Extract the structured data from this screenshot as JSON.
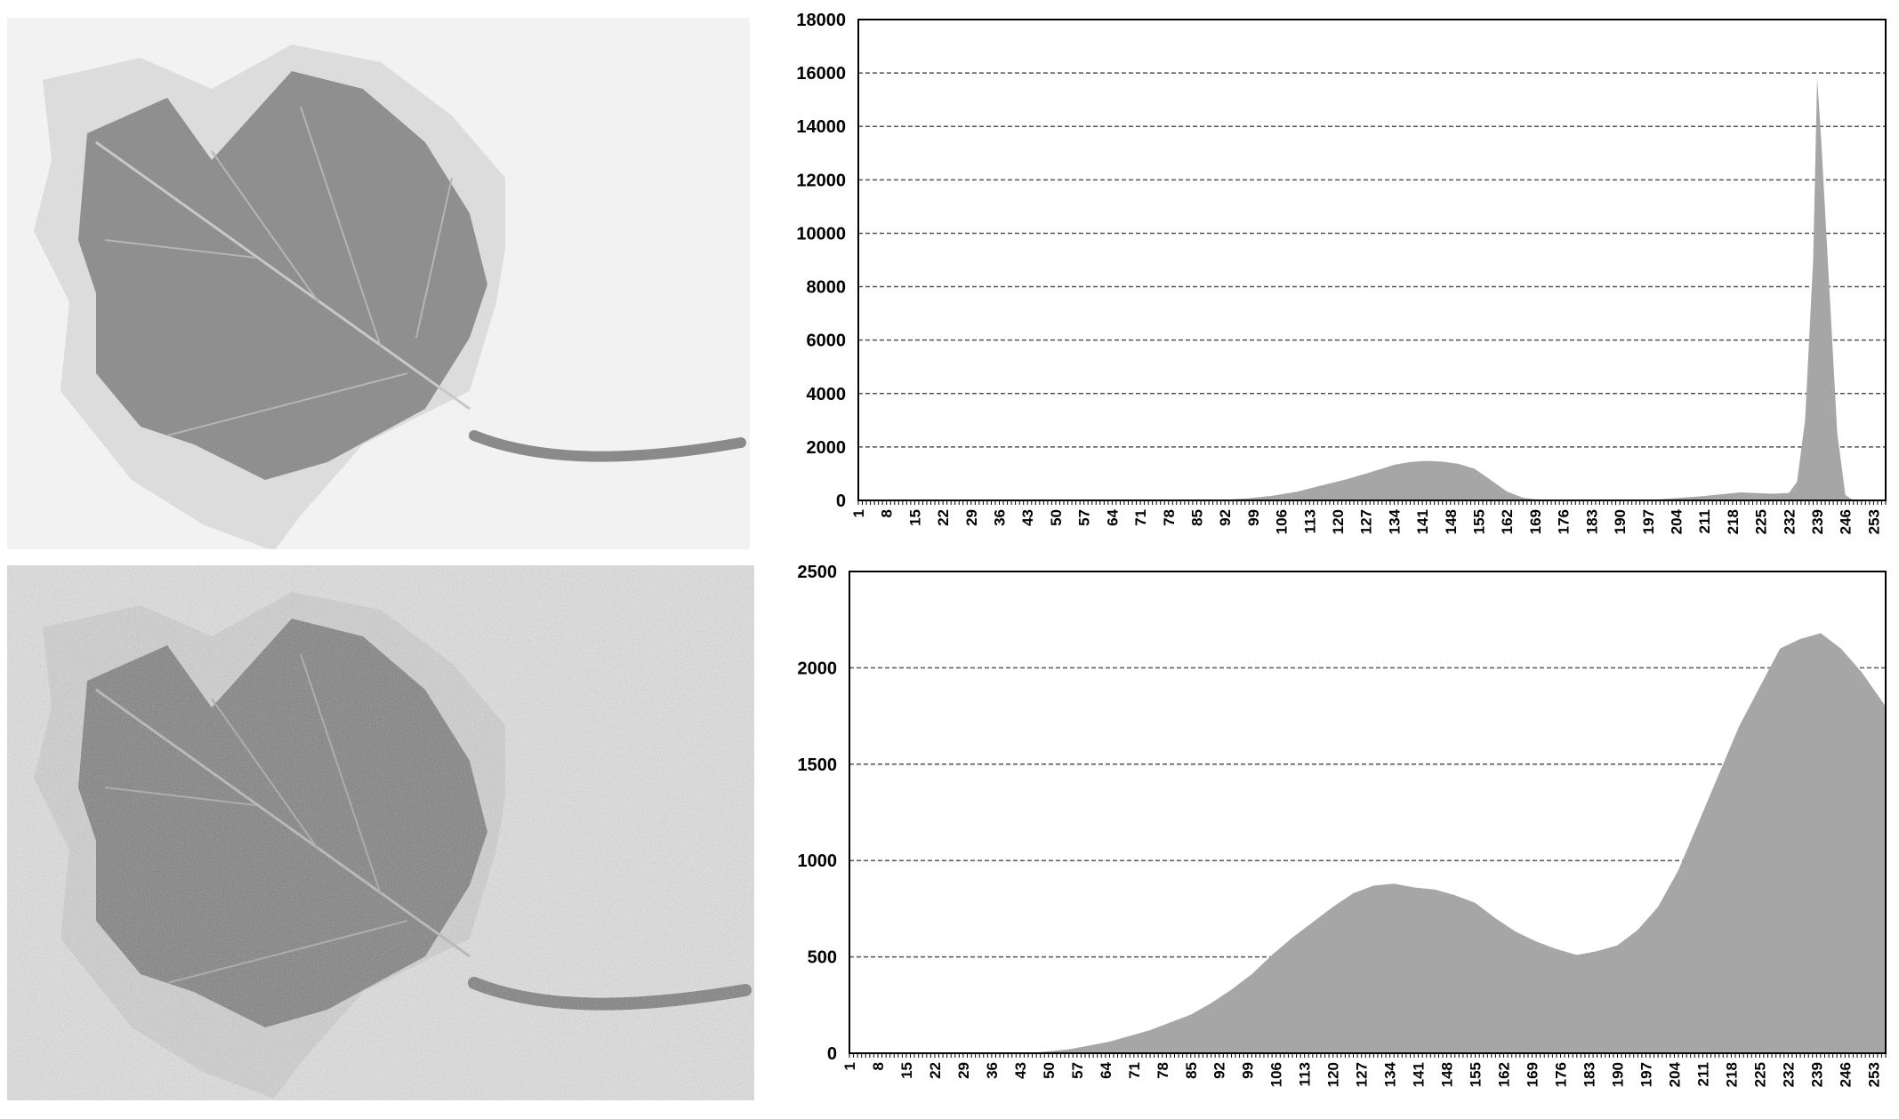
{
  "figure": {
    "images": [
      {
        "name": "leaf-original",
        "style": "grayscale leaf on near-white background"
      },
      {
        "name": "leaf-noisy",
        "style": "grayscale leaf with added speckle noise"
      }
    ],
    "colors": {
      "fill": "#a6a6a6",
      "grid": "#555555",
      "axis": "#000000"
    }
  },
  "chart_data": [
    {
      "type": "area",
      "title": "",
      "xlabel": "",
      "ylabel": "",
      "xlim": [
        1,
        256
      ],
      "ylim": [
        0,
        18000
      ],
      "grid": "horizontal-dashed",
      "yticks": [
        0,
        2000,
        4000,
        6000,
        8000,
        10000,
        12000,
        14000,
        16000,
        18000
      ],
      "xtick_labels": [
        "1",
        "8",
        "15",
        "22",
        "29",
        "36",
        "43",
        "50",
        "57",
        "64",
        "71",
        "78",
        "85",
        "92",
        "99",
        "106",
        "113",
        "120",
        "127",
        "134",
        "141",
        "148",
        "155",
        "162",
        "169",
        "176",
        "183",
        "190",
        "197",
        "204",
        "211",
        "218",
        "225",
        "232",
        "239",
        "246",
        "253"
      ],
      "x": [
        1,
        90,
        98,
        104,
        110,
        116,
        122,
        128,
        134,
        138,
        142,
        146,
        150,
        154,
        158,
        162,
        166,
        170,
        180,
        200,
        210,
        220,
        228,
        232,
        234,
        236,
        238,
        239,
        240,
        242,
        244,
        246,
        248,
        256
      ],
      "y": [
        0,
        0,
        80,
        180,
        330,
        560,
        780,
        1050,
        1330,
        1440,
        1480,
        1450,
        1370,
        1180,
        760,
        330,
        100,
        20,
        0,
        40,
        150,
        300,
        250,
        280,
        700,
        3000,
        9000,
        15800,
        13500,
        8000,
        2500,
        200,
        0,
        0
      ]
    },
    {
      "type": "area",
      "title": "",
      "xlabel": "",
      "ylabel": "",
      "xlim": [
        1,
        256
      ],
      "ylim": [
        0,
        2500
      ],
      "grid": "horizontal-dashed",
      "yticks": [
        0,
        500,
        1000,
        1500,
        2000,
        2500
      ],
      "xtick_labels": [
        "1",
        "8",
        "15",
        "22",
        "29",
        "36",
        "43",
        "50",
        "57",
        "64",
        "71",
        "78",
        "85",
        "92",
        "99",
        "106",
        "113",
        "120",
        "127",
        "134",
        "141",
        "148",
        "155",
        "162",
        "169",
        "176",
        "183",
        "190",
        "197",
        "204",
        "211",
        "218",
        "225",
        "232",
        "239",
        "246",
        "253"
      ],
      "x": [
        1,
        45,
        50,
        55,
        60,
        65,
        70,
        75,
        80,
        85,
        90,
        95,
        100,
        105,
        110,
        115,
        120,
        125,
        130,
        135,
        140,
        145,
        150,
        155,
        160,
        165,
        170,
        175,
        180,
        185,
        190,
        195,
        200,
        205,
        210,
        215,
        220,
        225,
        230,
        235,
        240,
        245,
        250,
        256
      ],
      "y": [
        0,
        0,
        10,
        20,
        40,
        60,
        90,
        120,
        160,
        200,
        260,
        330,
        410,
        510,
        600,
        680,
        760,
        830,
        870,
        880,
        860,
        850,
        820,
        780,
        700,
        630,
        580,
        540,
        510,
        530,
        560,
        640,
        760,
        950,
        1200,
        1450,
        1700,
        1900,
        2100,
        2150,
        2180,
        2100,
        1980,
        1800
      ]
    }
  ]
}
